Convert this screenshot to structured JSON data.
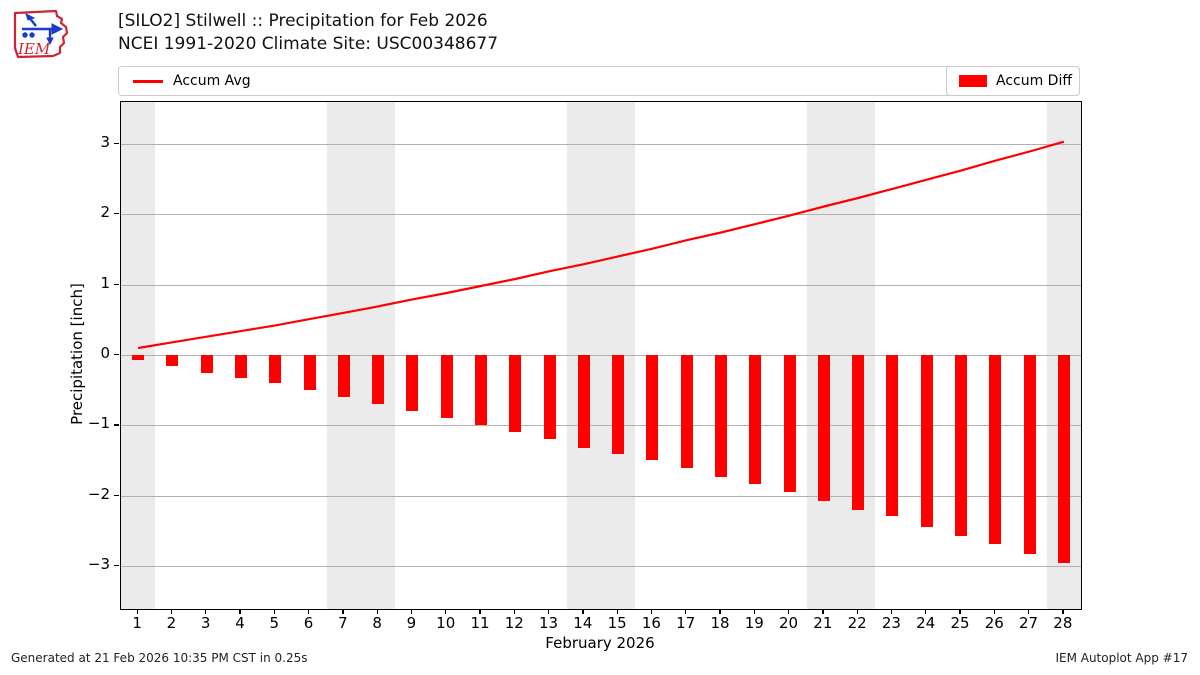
{
  "header": {
    "title_line1": "[SILO2] Stilwell :: Precipitation for Feb 2026",
    "title_line2": "NCEI 1991-2020 Climate Site: USC00348677",
    "logo_text": "IEM"
  },
  "legend": {
    "avg_label": "Accum Avg",
    "diff_label": "Accum Diff"
  },
  "footer": {
    "generated": "Generated at 21 Feb 2026 10:35 PM CST in 0.25s",
    "app": "IEM Autoplot App #17"
  },
  "colors": {
    "accent_red": "#ff0000",
    "grid": "#b0b0b0",
    "weekend_band": "#ebebeb",
    "spine": "#000000",
    "legend_border": "#cccccc",
    "logo_red": "#cf2433",
    "logo_blue": "#1a3bcc"
  },
  "chart_data": {
    "type": "combo",
    "title": "[SILO2] Stilwell :: Precipitation for Feb 2026",
    "subtitle": "NCEI 1991-2020 Climate Site: USC00348677",
    "xlabel": "February 2026",
    "ylabel": "Precipitation [inch]",
    "x": [
      1,
      2,
      3,
      4,
      5,
      6,
      7,
      8,
      9,
      10,
      11,
      12,
      13,
      14,
      15,
      16,
      17,
      18,
      19,
      20,
      21,
      22,
      23,
      24,
      25,
      26,
      27,
      28
    ],
    "xtick_labels": [
      "1",
      "2",
      "3",
      "4",
      "5",
      "6",
      "7",
      "8",
      "9",
      "10",
      "11",
      "12",
      "13",
      "14",
      "15",
      "16",
      "17",
      "18",
      "19",
      "20",
      "21",
      "22",
      "23",
      "24",
      "25",
      "26",
      "27",
      "28"
    ],
    "yticks": [
      3,
      2,
      1,
      0,
      -1,
      -2,
      -3
    ],
    "ytick_labels": [
      "3",
      "2",
      "1",
      "0",
      "−1",
      "−2",
      "−3"
    ],
    "ylim": [
      -3.6,
      3.6
    ],
    "grid": true,
    "legend_position": "top",
    "weekend_bands": [
      [
        0.5,
        1.5
      ],
      [
        6.5,
        8.5
      ],
      [
        13.5,
        15.5
      ],
      [
        20.5,
        22.5
      ],
      [
        27.5,
        28.5
      ]
    ],
    "series": [
      {
        "name": "Accum Avg",
        "type": "line",
        "color": "#ff0000",
        "values": [
          0.1,
          0.18,
          0.26,
          0.34,
          0.42,
          0.51,
          0.6,
          0.69,
          0.79,
          0.88,
          0.98,
          1.08,
          1.19,
          1.29,
          1.4,
          1.51,
          1.63,
          1.74,
          1.86,
          1.98,
          2.11,
          2.23,
          2.36,
          2.49,
          2.62,
          2.76,
          2.89,
          3.03
        ]
      },
      {
        "name": "Accum Diff",
        "type": "bar",
        "color": "#ff0000",
        "values": [
          -0.07,
          -0.16,
          -0.25,
          -0.32,
          -0.4,
          -0.5,
          -0.6,
          -0.7,
          -0.79,
          -0.89,
          -1.0,
          -1.09,
          -1.2,
          -1.32,
          -1.4,
          -1.49,
          -1.61,
          -1.73,
          -1.83,
          -1.94,
          -2.07,
          -2.2,
          -2.29,
          -2.45,
          -2.57,
          -2.68,
          -2.83,
          -2.95
        ]
      }
    ]
  }
}
